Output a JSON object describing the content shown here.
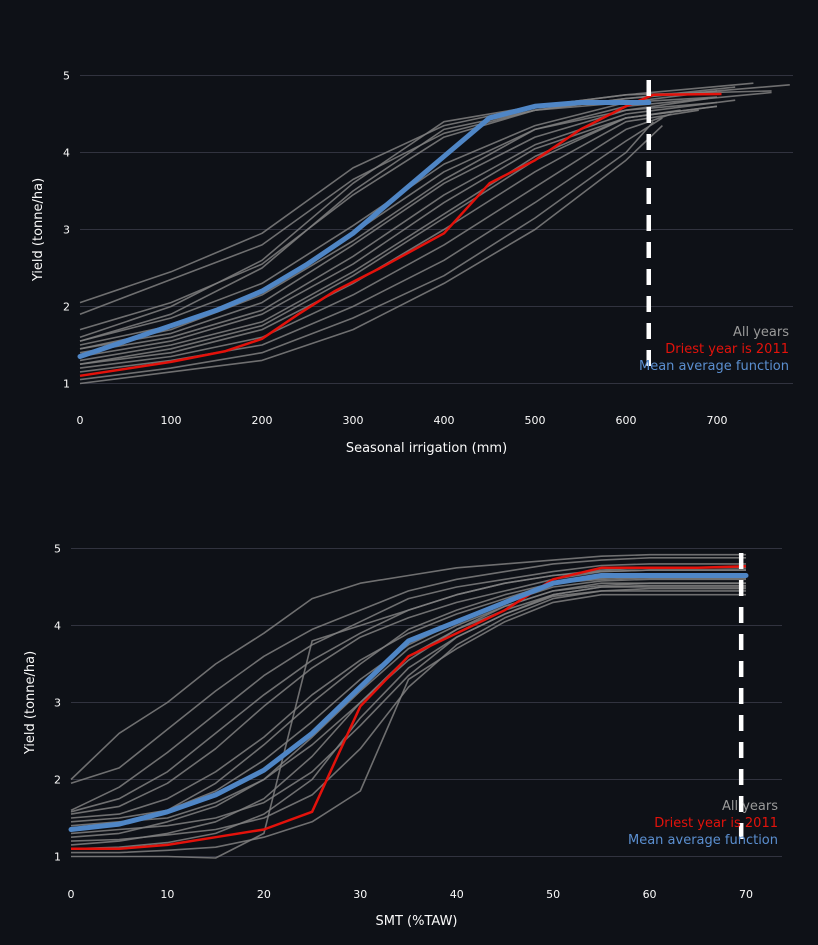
{
  "chart_data": [
    {
      "type": "line",
      "xlabel": "Seasonal irrigation (mm)",
      "ylabel": "Yield (tonne/ha)",
      "xlim": [
        0,
        780
      ],
      "ylim": [
        0.85,
        5.15
      ],
      "x_ticks": [
        "0",
        "100",
        "200",
        "300",
        "400",
        "500",
        "600",
        "700"
      ],
      "y_ticks": [
        "1",
        "2",
        "3",
        "4",
        "5"
      ],
      "legend": [
        "All years",
        "Driest year is 2011",
        "Mean average function"
      ],
      "legend_position": "bottom-right",
      "grid": "horizontal",
      "colors": {
        "all_years": "#808080",
        "driest": "#e3120b",
        "mean": "#4f86c6",
        "marker": "#ffffff"
      },
      "vline_x": 625,
      "mean": {
        "x": [
          0,
          50,
          100,
          150,
          200,
          250,
          300,
          350,
          400,
          450,
          500,
          550,
          600,
          625
        ],
        "y": [
          1.35,
          1.55,
          1.75,
          1.95,
          2.2,
          2.55,
          2.95,
          3.45,
          3.95,
          4.45,
          4.6,
          4.65,
          4.65,
          4.65
        ]
      },
      "driest": {
        "x": [
          0,
          100,
          160,
          200,
          240,
          280,
          330,
          400,
          450,
          500,
          550,
          600,
          630,
          705
        ],
        "y": [
          1.1,
          1.28,
          1.42,
          1.58,
          1.9,
          2.2,
          2.5,
          2.95,
          3.6,
          3.9,
          4.3,
          4.6,
          4.75,
          4.76
        ]
      },
      "years": [
        {
          "x": [
            0,
            100,
            200,
            300,
            400,
            500,
            600,
            740
          ],
          "y": [
            2.05,
            2.45,
            2.95,
            3.8,
            4.35,
            4.6,
            4.75,
            4.9
          ]
        },
        {
          "x": [
            0,
            100,
            200,
            300,
            400,
            500,
            600,
            780
          ],
          "y": [
            1.9,
            2.35,
            2.8,
            3.65,
            4.25,
            4.55,
            4.7,
            4.88
          ]
        },
        {
          "x": [
            0,
            100,
            200,
            300,
            400,
            500,
            600,
            720
          ],
          "y": [
            1.7,
            2.05,
            2.55,
            3.45,
            4.2,
            4.55,
            4.7,
            4.85
          ]
        },
        {
          "x": [
            0,
            100,
            200,
            300,
            400,
            500,
            600,
            700
          ],
          "y": [
            1.55,
            1.85,
            2.3,
            3.05,
            3.85,
            4.35,
            4.65,
            4.8
          ]
        },
        {
          "x": [
            0,
            100,
            200,
            300,
            400,
            500,
            600,
            760
          ],
          "y": [
            1.5,
            1.75,
            2.2,
            2.95,
            3.75,
            4.3,
            4.6,
            4.78
          ]
        },
        {
          "x": [
            0,
            100,
            200,
            300,
            400,
            500,
            600,
            690
          ],
          "y": [
            1.45,
            1.65,
            2.05,
            2.8,
            3.6,
            4.2,
            4.55,
            4.7
          ]
        },
        {
          "x": [
            0,
            100,
            200,
            300,
            400,
            500,
            600,
            720
          ],
          "y": [
            1.4,
            1.6,
            1.95,
            2.65,
            3.45,
            4.1,
            4.5,
            4.68
          ]
        },
        {
          "x": [
            0,
            100,
            200,
            300,
            400,
            500,
            600,
            700
          ],
          "y": [
            1.3,
            1.5,
            1.8,
            2.45,
            3.2,
            3.95,
            4.45,
            4.6
          ]
        },
        {
          "x": [
            0,
            100,
            200,
            300,
            400,
            500,
            600,
            680
          ],
          "y": [
            1.25,
            1.4,
            1.7,
            2.3,
            3.0,
            3.75,
            4.4,
            4.55
          ]
        },
        {
          "x": [
            0,
            100,
            200,
            300,
            400,
            500,
            600,
            650
          ],
          "y": [
            1.2,
            1.35,
            1.6,
            2.15,
            2.8,
            3.55,
            4.3,
            4.5
          ]
        },
        {
          "x": [
            0,
            100,
            200,
            300,
            400,
            500,
            600,
            640
          ],
          "y": [
            1.15,
            1.3,
            1.5,
            2.0,
            2.6,
            3.35,
            4.15,
            4.45
          ]
        },
        {
          "x": [
            0,
            100,
            200,
            300,
            400,
            500,
            600,
            630
          ],
          "y": [
            1.05,
            1.2,
            1.4,
            1.85,
            2.4,
            3.15,
            4.0,
            4.4
          ]
        },
        {
          "x": [
            0,
            100,
            200,
            300,
            400,
            500,
            600,
            640
          ],
          "y": [
            1.0,
            1.15,
            1.3,
            1.7,
            2.3,
            3.0,
            3.9,
            4.35
          ]
        },
        {
          "x": [
            0,
            100,
            200,
            300,
            400,
            500,
            600,
            700
          ],
          "y": [
            1.55,
            1.9,
            2.5,
            3.5,
            4.3,
            4.55,
            4.65,
            4.72
          ]
        },
        {
          "x": [
            0,
            100,
            200,
            300,
            400,
            500,
            600,
            700
          ],
          "y": [
            1.45,
            1.7,
            2.15,
            2.85,
            3.65,
            4.3,
            4.55,
            4.65
          ]
        },
        {
          "x": [
            0,
            100,
            200,
            300,
            400,
            500,
            600,
            660
          ],
          "y": [
            1.35,
            1.55,
            1.9,
            2.55,
            3.35,
            4.05,
            4.45,
            4.55
          ]
        },
        {
          "x": [
            0,
            100,
            200,
            300,
            400,
            500,
            600,
            760
          ],
          "y": [
            1.6,
            2.0,
            2.6,
            3.6,
            4.4,
            4.6,
            4.75,
            4.8
          ]
        },
        {
          "x": [
            0,
            100,
            200,
            300,
            400,
            500,
            600,
            700
          ],
          "y": [
            1.25,
            1.45,
            1.75,
            2.4,
            3.15,
            3.9,
            4.45,
            4.6
          ]
        }
      ]
    },
    {
      "type": "line",
      "xlabel": "SMT (%TAW)",
      "ylabel": "Yield (tonne/ha)",
      "xlim": [
        0,
        70
      ],
      "ylim": [
        0.85,
        5.15
      ],
      "x_ticks": [
        "0",
        "10",
        "20",
        "30",
        "40",
        "50",
        "60",
        "70"
      ],
      "y_ticks": [
        "1",
        "2",
        "3",
        "4",
        "5"
      ],
      "legend": [
        "All years",
        "Driest year is 2011",
        "Mean average function"
      ],
      "legend_position": "bottom-right",
      "grid": "horizontal",
      "colors": {
        "all_years": "#808080",
        "driest": "#e3120b",
        "mean": "#4f86c6",
        "marker": "#ffffff"
      },
      "vline_x": 69.5,
      "mean": {
        "x": [
          0,
          5,
          10,
          15,
          20,
          25,
          30,
          35,
          40,
          45,
          50,
          55,
          60,
          65,
          70
        ],
        "y": [
          1.35,
          1.42,
          1.58,
          1.8,
          2.12,
          2.6,
          3.2,
          3.8,
          4.05,
          4.3,
          4.55,
          4.65,
          4.65,
          4.65,
          4.65
        ]
      },
      "driest": {
        "x": [
          0,
          5,
          10,
          15,
          20,
          25,
          30,
          35,
          40,
          45,
          50,
          55,
          60,
          65,
          70
        ],
        "y": [
          1.1,
          1.1,
          1.15,
          1.25,
          1.35,
          1.58,
          2.95,
          3.6,
          3.9,
          4.2,
          4.6,
          4.75,
          4.75,
          4.75,
          4.77
        ]
      },
      "years": [
        {
          "x": [
            0,
            5,
            10,
            15,
            20,
            25,
            30,
            35,
            40,
            45,
            50,
            55,
            60,
            70
          ],
          "y": [
            2.0,
            2.6,
            3.0,
            3.5,
            3.9,
            4.35,
            4.55,
            4.65,
            4.75,
            4.8,
            4.85,
            4.9,
            4.92,
            4.92
          ]
        },
        {
          "x": [
            0,
            5,
            10,
            15,
            20,
            25,
            30,
            35,
            40,
            45,
            50,
            55,
            60,
            70
          ],
          "y": [
            1.95,
            2.15,
            2.65,
            3.15,
            3.6,
            3.95,
            4.2,
            4.45,
            4.6,
            4.7,
            4.8,
            4.85,
            4.88,
            4.88
          ]
        },
        {
          "x": [
            0,
            5,
            10,
            15,
            20,
            25,
            30,
            35,
            40,
            45,
            50,
            55,
            60,
            70
          ],
          "y": [
            1.6,
            1.9,
            2.35,
            2.85,
            3.35,
            3.75,
            4.05,
            4.35,
            4.5,
            4.6,
            4.7,
            4.78,
            4.8,
            4.8
          ]
        },
        {
          "x": [
            0,
            5,
            10,
            15,
            20,
            25,
            30,
            35,
            40,
            45,
            50,
            55,
            60,
            70
          ],
          "y": [
            1.55,
            1.65,
            1.95,
            2.4,
            2.95,
            3.45,
            3.85,
            4.1,
            4.3,
            4.45,
            4.6,
            4.7,
            4.72,
            4.72
          ]
        },
        {
          "x": [
            0,
            5,
            10,
            15,
            20,
            25,
            30,
            35,
            40,
            45,
            50,
            55,
            60,
            70
          ],
          "y": [
            1.5,
            1.55,
            1.75,
            2.1,
            2.55,
            3.1,
            3.55,
            3.9,
            4.15,
            4.35,
            4.55,
            4.62,
            4.65,
            4.65
          ]
        },
        {
          "x": [
            0,
            5,
            10,
            15,
            20,
            25,
            30,
            35,
            40,
            45,
            50,
            55,
            60,
            70
          ],
          "y": [
            1.45,
            1.5,
            1.6,
            1.85,
            2.25,
            2.75,
            3.3,
            3.75,
            4.05,
            4.3,
            4.5,
            4.58,
            4.6,
            4.6
          ]
        },
        {
          "x": [
            0,
            5,
            10,
            15,
            20,
            25,
            30,
            35,
            40,
            45,
            50,
            55,
            60,
            70
          ],
          "y": [
            1.4,
            1.45,
            1.5,
            1.7,
            2.0,
            2.45,
            3.0,
            3.55,
            3.95,
            4.25,
            4.45,
            4.55,
            4.55,
            4.55
          ]
        },
        {
          "x": [
            0,
            5,
            10,
            15,
            20,
            25,
            30,
            35,
            40,
            45,
            50,
            55,
            60,
            70
          ],
          "y": [
            1.3,
            1.35,
            1.4,
            1.5,
            1.7,
            2.1,
            2.7,
            3.35,
            3.85,
            4.15,
            4.4,
            4.5,
            4.5,
            4.5
          ]
        },
        {
          "x": [
            0,
            5,
            10,
            15,
            20,
            25,
            30,
            35,
            40,
            45,
            50,
            55,
            60,
            70
          ],
          "y": [
            1.2,
            1.22,
            1.28,
            1.35,
            1.5,
            1.8,
            2.4,
            3.2,
            3.75,
            4.1,
            4.35,
            4.45,
            4.45,
            4.45
          ]
        },
        {
          "x": [
            0,
            5,
            10,
            15,
            20,
            25,
            30,
            35,
            40,
            45,
            50,
            55,
            60,
            70
          ],
          "y": [
            1.05,
            1.05,
            1.08,
            1.12,
            1.25,
            1.45,
            1.85,
            3.3,
            3.7,
            4.05,
            4.3,
            4.4,
            4.4,
            4.4
          ]
        },
        {
          "x": [
            0,
            5,
            10,
            15,
            20,
            25,
            30,
            35,
            40,
            45,
            50,
            55,
            60,
            70
          ],
          "y": [
            1.0,
            1.0,
            1.0,
            0.98,
            1.3,
            3.8,
            4.0,
            4.2,
            4.4,
            4.55,
            4.65,
            4.7,
            4.72,
            4.72
          ]
        },
        {
          "x": [
            0,
            5,
            10,
            15,
            20,
            25,
            30,
            35,
            40,
            45,
            50,
            55,
            60,
            70
          ],
          "y": [
            1.15,
            1.2,
            1.3,
            1.45,
            1.75,
            2.3,
            3.0,
            3.6,
            3.95,
            4.2,
            4.4,
            4.5,
            4.52,
            4.52
          ]
        },
        {
          "x": [
            0,
            5,
            10,
            15,
            20,
            25,
            30,
            35,
            40,
            45,
            50,
            55,
            60,
            70
          ],
          "y": [
            1.35,
            1.4,
            1.6,
            1.95,
            2.45,
            3.0,
            3.5,
            3.95,
            4.2,
            4.4,
            4.55,
            4.6,
            4.62,
            4.62
          ]
        },
        {
          "x": [
            0,
            5,
            10,
            15,
            20,
            25,
            30,
            35,
            40,
            45,
            50,
            55,
            60,
            70
          ],
          "y": [
            1.25,
            1.3,
            1.45,
            1.65,
            2.0,
            2.55,
            3.15,
            3.7,
            4.0,
            4.25,
            4.45,
            4.52,
            4.55,
            4.55
          ]
        },
        {
          "x": [
            0,
            5,
            10,
            15,
            20,
            25,
            30,
            35,
            40,
            45,
            50,
            55,
            60,
            70
          ],
          "y": [
            1.1,
            1.12,
            1.18,
            1.3,
            1.55,
            2.0,
            2.8,
            3.45,
            3.85,
            4.15,
            4.38,
            4.45,
            4.48,
            4.48
          ]
        },
        {
          "x": [
            0,
            5,
            10,
            15,
            20,
            25,
            30,
            35,
            40,
            45,
            50,
            55,
            60,
            70
          ],
          "y": [
            1.58,
            1.75,
            2.1,
            2.6,
            3.1,
            3.55,
            3.9,
            4.2,
            4.4,
            4.55,
            4.65,
            4.72,
            4.75,
            4.75
          ]
        }
      ]
    }
  ]
}
